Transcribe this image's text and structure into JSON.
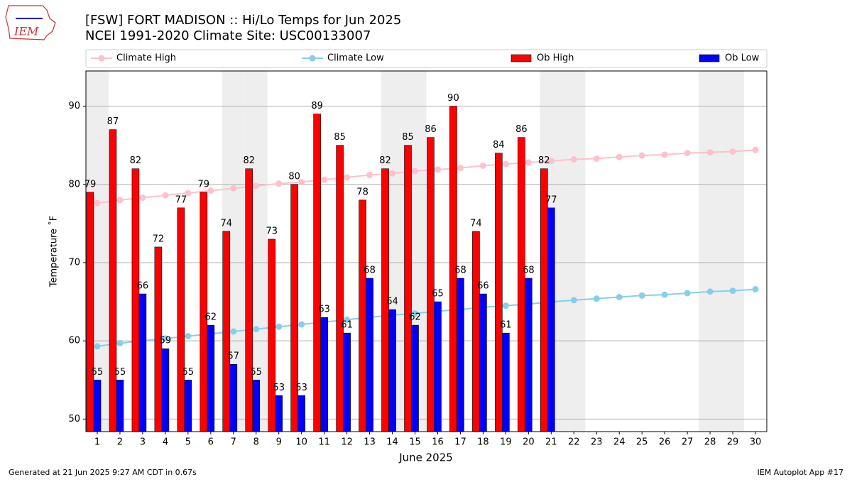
{
  "logo_text": "IEM",
  "chart_data": {
    "type": "combo",
    "title": "[FSW] FORT MADISON :: Hi/Lo Temps for Jun 2025",
    "subtitle": "NCEI 1991-2020 Climate Site: USC00133007",
    "x_label": "June 2025",
    "y_label": "Temperature ˚F",
    "footer_left": "Generated at 21 Jun 2025 9:27 AM CDT in 0.67s",
    "footer_right": "IEM Autoplot App #17",
    "x": [
      1,
      2,
      3,
      4,
      5,
      6,
      7,
      8,
      9,
      10,
      11,
      12,
      13,
      14,
      15,
      16,
      17,
      18,
      19,
      20,
      21,
      22,
      23,
      24,
      25,
      26,
      27,
      28,
      29,
      30
    ],
    "xlim": [
      0.5,
      30.5
    ],
    "xticks": [
      1,
      2,
      3,
      4,
      5,
      6,
      7,
      8,
      9,
      10,
      11,
      12,
      13,
      14,
      15,
      16,
      17,
      18,
      19,
      20,
      21,
      22,
      23,
      24,
      25,
      26,
      27,
      28,
      29,
      30
    ],
    "ylim": [
      48.4,
      94.5
    ],
    "yticks": [
      50,
      60,
      70,
      80,
      90
    ],
    "grid": true,
    "legend": "top",
    "weekends": [
      1,
      7,
      8,
      14,
      15,
      21,
      22,
      28,
      29
    ],
    "series": [
      {
        "name": "Climate High",
        "kind": "line",
        "color": "#ffc0cb",
        "values": [
          77.6,
          78.0,
          78.3,
          78.6,
          78.9,
          79.2,
          79.5,
          79.8,
          80.1,
          80.3,
          80.6,
          80.9,
          81.2,
          81.4,
          81.7,
          81.9,
          82.1,
          82.4,
          82.6,
          82.8,
          83.0,
          83.2,
          83.3,
          83.5,
          83.7,
          83.8,
          84.0,
          84.1,
          84.2,
          84.4
        ]
      },
      {
        "name": "Climate Low",
        "kind": "line",
        "color": "#87ceeb",
        "values": [
          59.3,
          59.7,
          60.0,
          60.3,
          60.6,
          60.9,
          61.2,
          61.5,
          61.8,
          62.1,
          62.4,
          62.7,
          63.0,
          63.3,
          63.5,
          63.8,
          64.0,
          64.3,
          64.5,
          64.7,
          65.0,
          65.2,
          65.4,
          65.6,
          65.8,
          65.9,
          66.1,
          66.3,
          66.4,
          66.6
        ]
      },
      {
        "name": "Ob High",
        "kind": "bar",
        "color": "#ff0000",
        "values": [
          79,
          87,
          82,
          72,
          77,
          79,
          74,
          82,
          73,
          80,
          89,
          85,
          78,
          82,
          85,
          86,
          90,
          74,
          84,
          86,
          82,
          null,
          null,
          null,
          null,
          null,
          null,
          null,
          null,
          null
        ]
      },
      {
        "name": "Ob Low",
        "kind": "bar",
        "color": "#0000ff",
        "values": [
          55,
          55,
          66,
          59,
          55,
          62,
          57,
          55,
          53,
          53,
          63,
          61,
          68,
          64,
          62,
          65,
          68,
          66,
          61,
          68,
          77,
          null,
          null,
          null,
          null,
          null,
          null,
          null,
          null,
          null
        ]
      }
    ]
  }
}
